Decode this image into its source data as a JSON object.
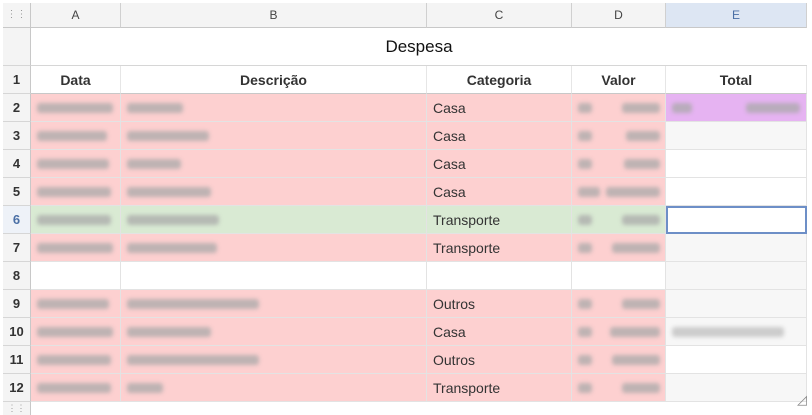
{
  "columns": [
    "A",
    "B",
    "C",
    "D",
    "E"
  ],
  "corner_icon": "grid-handle-icon",
  "title": "Despesa",
  "headers": [
    "Data",
    "Descrição",
    "Categoria",
    "Valor",
    "Total"
  ],
  "rows": [
    {
      "num": "1"
    },
    {
      "num": "2",
      "categoria": "Casa"
    },
    {
      "num": "3",
      "categoria": "Casa"
    },
    {
      "num": "4",
      "categoria": "Casa"
    },
    {
      "num": "5",
      "categoria": "Casa"
    },
    {
      "num": "6",
      "categoria": "Transporte"
    },
    {
      "num": "7",
      "categoria": "Transporte"
    },
    {
      "num": "8",
      "categoria": ""
    },
    {
      "num": "9",
      "categoria": "Outros"
    },
    {
      "num": "10",
      "categoria": "Casa"
    },
    {
      "num": "11",
      "categoria": "Outros"
    },
    {
      "num": "12",
      "categoria": "Transporte"
    }
  ],
  "colors": {
    "expense_row": "#fdd0d0",
    "selected_row": "#d9ead3",
    "total_cell": "#e6b3f2",
    "selection_border": "#4a6fa5"
  }
}
